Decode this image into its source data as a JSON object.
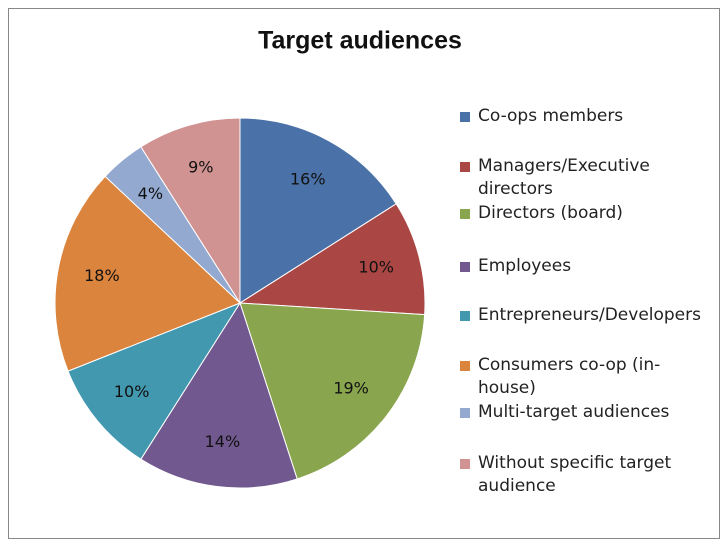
{
  "chart_data": {
    "type": "pie",
    "title": "Target audiences",
    "categories": [
      "Co-ops members",
      "Managers/Executive directors",
      "Directors (board)",
      "Employees",
      "Entrepreneurs/Developers",
      "Consumers co-op (in-house)",
      "Multi-target audiences",
      "Without specific target audience"
    ],
    "values": [
      16,
      10,
      19,
      14,
      10,
      18,
      4,
      9
    ],
    "value_labels": [
      "16%",
      "10%",
      "19%",
      "14%",
      "10%",
      "18%",
      "4%",
      "9%"
    ],
    "colors": [
      "#4a72a8",
      "#aa4643",
      "#89a54e",
      "#71588f",
      "#4198af",
      "#db843d",
      "#93a9cf",
      "#d19392"
    ],
    "legend": "right"
  }
}
